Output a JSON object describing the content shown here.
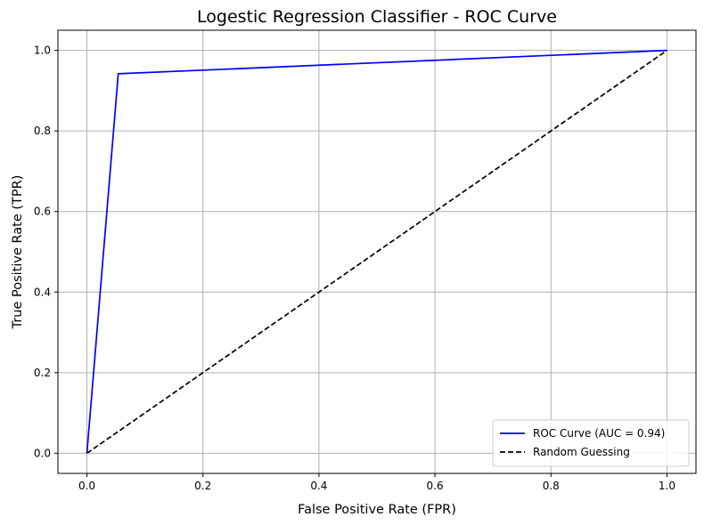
{
  "chart_data": {
    "type": "line",
    "title": "Logestic Regression Classifier - ROC Curve",
    "xlabel": "False Positive Rate (FPR)",
    "ylabel": "True Positive Rate (TPR)",
    "xlim": [
      -0.05,
      1.05
    ],
    "ylim": [
      -0.05,
      1.05
    ],
    "xticks": [
      0.0,
      0.2,
      0.4,
      0.6,
      0.8,
      1.0
    ],
    "yticks": [
      0.0,
      0.2,
      0.4,
      0.6,
      0.8,
      1.0
    ],
    "xtick_labels": [
      "0.0",
      "0.2",
      "0.4",
      "0.6",
      "0.8",
      "1.0"
    ],
    "ytick_labels": [
      "0.0",
      "0.2",
      "0.4",
      "0.6",
      "0.8",
      "1.0"
    ],
    "grid": true,
    "legend_position": "lower-right",
    "series": [
      {
        "name": "ROC Curve (AUC = 0.94)",
        "color": "#0000ff",
        "style": "solid",
        "x": [
          0.0,
          0.054,
          1.0
        ],
        "y": [
          0.0,
          0.942,
          1.0
        ]
      },
      {
        "name": "Random Guessing",
        "color": "#000000",
        "style": "dashed",
        "x": [
          0.0,
          1.0
        ],
        "y": [
          0.0,
          1.0
        ]
      }
    ]
  }
}
